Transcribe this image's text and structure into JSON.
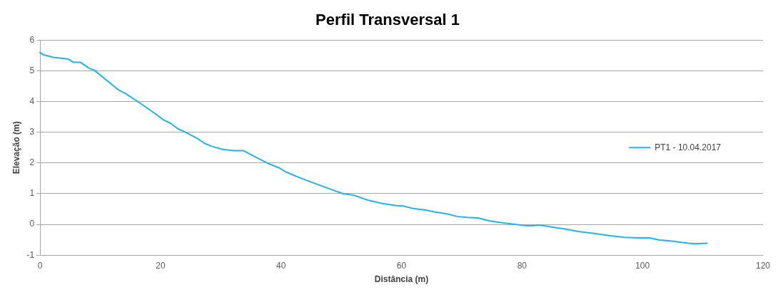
{
  "chart_data": {
    "type": "line",
    "title": "Perfil Transversal 1",
    "xlabel": "Distância (m)",
    "ylabel": "Elevação (m)",
    "xlim": [
      0,
      120
    ],
    "xticks": [
      0,
      20,
      40,
      60,
      80,
      100,
      120
    ],
    "ylim": [
      -1,
      6
    ],
    "yticks": [
      -1,
      0,
      1,
      2,
      3,
      4,
      5,
      6
    ],
    "grid": "y",
    "legend": "right",
    "marker": "none",
    "line_style": "solid",
    "series": [
      {
        "name": "PT1 - 10.04.2017",
        "color": "#1fb4ec",
        "x": [
          0,
          0.5,
          2.2,
          4.6,
          5.5,
          6.7,
          8.1,
          9,
          13.1,
          14.3,
          15.5,
          16.6,
          19,
          20.6,
          21.7,
          22.9,
          24.1,
          26.1,
          27.3,
          28.4,
          30.2,
          32,
          33.8,
          35.5,
          37.9,
          39.7,
          40.9,
          42.6,
          45,
          47.9,
          50.3,
          52.1,
          54.4,
          56.8,
          59.2,
          60.3,
          62.1,
          63.9,
          65.6,
          67.4,
          69.2,
          70.9,
          72.7,
          74.5,
          76.9,
          79.8,
          81.3,
          82.8,
          85.1,
          87.5,
          89.3,
          92.2,
          94.6,
          97,
          99.3,
          101.1,
          102.8,
          104.6,
          107.6,
          108.7,
          110.7
        ],
        "values": [
          5.6,
          5.53,
          5.44,
          5.39,
          5.28,
          5.28,
          5.09,
          5.02,
          4.37,
          4.25,
          4.09,
          3.95,
          3.62,
          3.39,
          3.29,
          3.11,
          3.01,
          2.8,
          2.64,
          2.55,
          2.45,
          2.4,
          2.4,
          2.22,
          1.98,
          1.84,
          1.7,
          1.56,
          1.38,
          1.17,
          1,
          0.95,
          0.79,
          0.68,
          0.61,
          0.6,
          0.51,
          0.47,
          0.4,
          0.35,
          0.26,
          0.23,
          0.21,
          0.12,
          0.05,
          -0.02,
          -0.05,
          -0.02,
          -0.09,
          -0.16,
          -0.23,
          -0.3,
          -0.37,
          -0.42,
          -0.44,
          -0.44,
          -0.51,
          -0.54,
          -0.61,
          -0.63,
          -0.61
        ]
      }
    ]
  }
}
